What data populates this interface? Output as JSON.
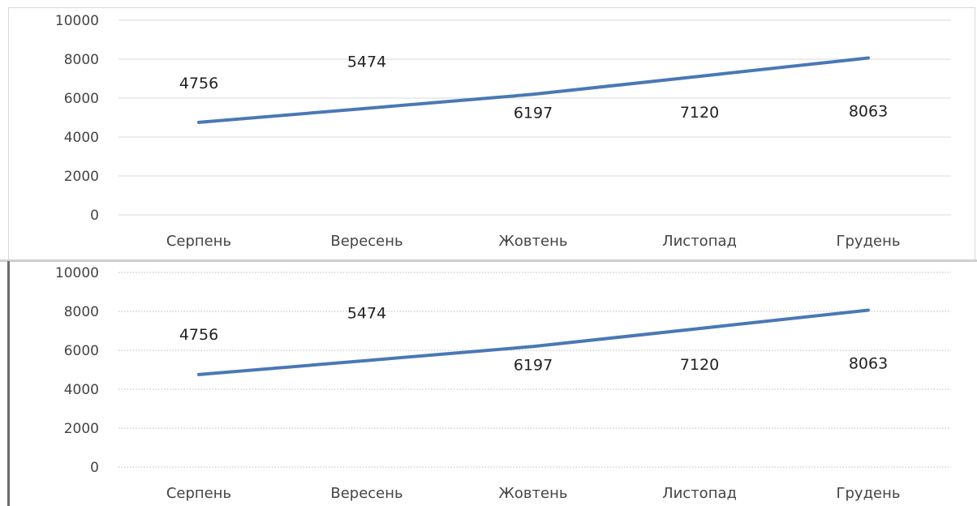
{
  "chart_data": [
    {
      "type": "line",
      "categories": [
        "Серпень",
        "Вересень",
        "Жовтень",
        "Листопад",
        "Грудень"
      ],
      "values": [
        4756,
        5474,
        6197,
        7120,
        8063
      ],
      "data_labels": [
        "4756",
        "5474",
        "6197",
        "7120",
        "8063"
      ],
      "yticks": [
        "0",
        "2000",
        "4000",
        "6000",
        "8000",
        "10000"
      ],
      "ylim": [
        0,
        10000
      ],
      "grid": "horizontal solid",
      "line_color": "#4a78b5"
    },
    {
      "type": "line",
      "categories": [
        "Серпень",
        "Вересень",
        "Жовтень",
        "Листопад",
        "Грудень"
      ],
      "values": [
        4756,
        5474,
        6197,
        7120,
        8063
      ],
      "data_labels": [
        "4756",
        "5474",
        "6197",
        "7120",
        "8063"
      ],
      "yticks": [
        "0",
        "2000",
        "4000",
        "6000",
        "8000",
        "10000"
      ],
      "ylim": [
        0,
        10000
      ],
      "grid": "horizontal dotted",
      "line_color": "#4a78b5"
    }
  ]
}
